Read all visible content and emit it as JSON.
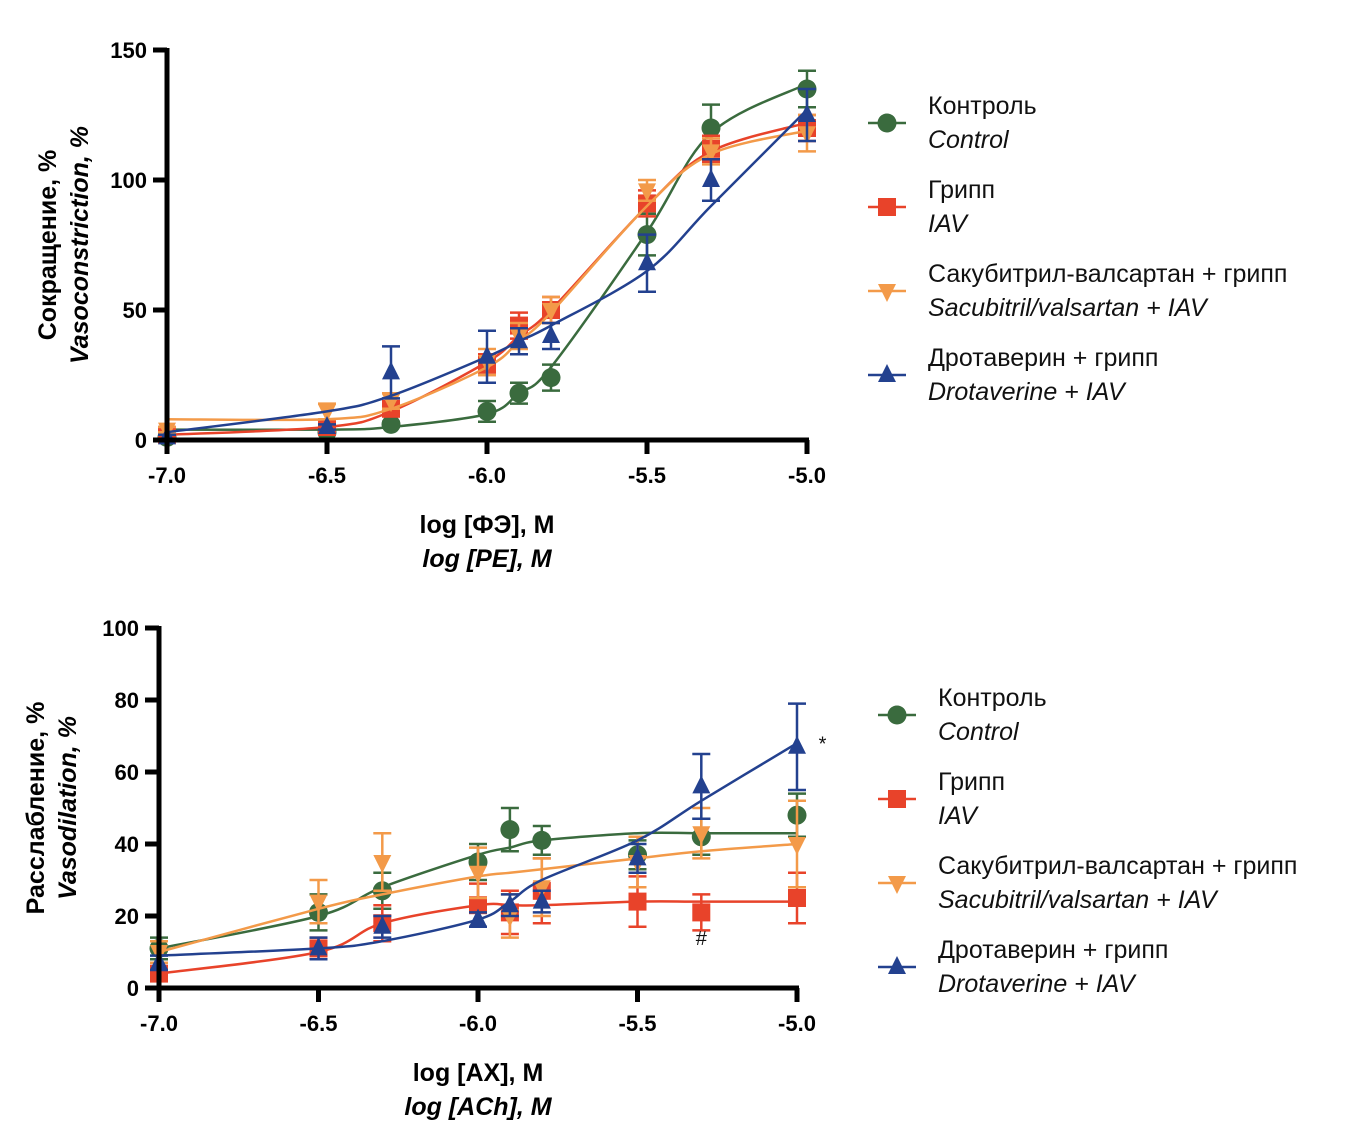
{
  "chart_data": [
    {
      "type": "line",
      "id": "top",
      "title": "",
      "xlabel": "log [ФЭ], M",
      "xlabel_en": "log [PE], M",
      "ylabel": "Сокращение, %",
      "ylabel_en": "Vasoconstriction, %",
      "xlim": [
        -7.0,
        -5.0
      ],
      "ylim": [
        0,
        150
      ],
      "xticks": [
        -7.0,
        -6.5,
        -6.0,
        -5.5,
        -5.0
      ],
      "xtick_labels": [
        "-7.0",
        "-6.5",
        "-6.0",
        "-5.5",
        "-5.0"
      ],
      "yticks": [
        0,
        50,
        100,
        150
      ],
      "ytick_labels": [
        "0",
        "50",
        "100",
        "150"
      ],
      "grid": false,
      "legend_position": "right",
      "x": [
        -7.0,
        -6.5,
        -6.3,
        -6.0,
        -5.9,
        -5.8,
        -5.5,
        -5.3,
        -5.0
      ],
      "series": [
        {
          "name": "Контроль",
          "name_en": "Control",
          "color": "#3a6b3e",
          "marker": "circle",
          "values": [
            1,
            3,
            6,
            11,
            18,
            24,
            79,
            120,
            135
          ],
          "errors": [
            1,
            1,
            1,
            4,
            4,
            5,
            8,
            9,
            7
          ],
          "fit": [
            4,
            4,
            5,
            10,
            18,
            28,
            80,
            118,
            137
          ]
        },
        {
          "name": "Грипп",
          "name_en": "IAV",
          "color": "#e8432a",
          "marker": "square",
          "values": [
            2,
            5,
            12,
            29,
            44,
            50,
            91,
            112,
            120
          ],
          "errors": [
            1,
            1,
            2,
            4,
            5,
            5,
            5,
            5,
            5
          ],
          "fit": [
            2,
            5,
            11,
            30,
            40,
            50,
            90,
            111,
            122
          ]
        },
        {
          "name": "Сакубитрил-валсартан + грипп",
          "name_en": "Sacubitril/valsartan + IAV",
          "color": "#f39a49",
          "marker": "triangle-down",
          "values": [
            4,
            11,
            15,
            30,
            40,
            50,
            96,
            111,
            118
          ],
          "errors": [
            1,
            3,
            3,
            5,
            5,
            5,
            4,
            5,
            7
          ],
          "fit": [
            8,
            8,
            12,
            28,
            38,
            49,
            90,
            110,
            119
          ]
        },
        {
          "name": "Дротаверин + грипп",
          "name_en": "Drotaverine + IAV",
          "color": "#23418f",
          "marker": "triangle-up",
          "values": [
            1,
            5,
            26,
            32,
            38,
            40,
            68,
            100,
            125
          ],
          "errors": [
            1,
            1,
            10,
            10,
            5,
            5,
            11,
            8,
            10
          ],
          "fit": [
            3,
            11,
            17,
            32,
            38,
            44,
            65,
            90,
            127
          ]
        }
      ],
      "annotations": []
    },
    {
      "type": "line",
      "id": "bottom",
      "title": "",
      "xlabel": "log [АХ], M",
      "xlabel_en": "log [ACh], M",
      "ylabel": "Расслабление, %",
      "ylabel_en": "Vasodilation, %",
      "xlim": [
        -7.0,
        -5.0
      ],
      "ylim": [
        0,
        100
      ],
      "xticks": [
        -7.0,
        -6.5,
        -6.0,
        -5.5,
        -5.0
      ],
      "xtick_labels": [
        "-7.0",
        "-6.5",
        "-6.0",
        "-5.5",
        "-5.0"
      ],
      "yticks": [
        0,
        20,
        40,
        60,
        80,
        100
      ],
      "ytick_labels": [
        "0",
        "20",
        "40",
        "60",
        "80",
        "100"
      ],
      "grid": false,
      "legend_position": "right",
      "x": [
        -7.0,
        -6.5,
        -6.3,
        -6.0,
        -5.9,
        -5.8,
        -5.5,
        -5.3,
        -5.0
      ],
      "series": [
        {
          "name": "Контроль",
          "name_en": "Control",
          "color": "#3a6b3e",
          "marker": "circle",
          "values": [
            11,
            21,
            27,
            35,
            44,
            41,
            37,
            42,
            48
          ],
          "errors": [
            3,
            5,
            5,
            5,
            6,
            4,
            4,
            5,
            6
          ],
          "fit": [
            11,
            20,
            28,
            37,
            39,
            41,
            43,
            43,
            43
          ]
        },
        {
          "name": "Грипп",
          "name_en": "IAV",
          "color": "#e8432a",
          "marker": "square",
          "values": [
            4,
            11,
            18,
            23,
            21,
            27,
            24,
            21,
            25
          ],
          "errors": [
            1,
            3,
            5,
            6,
            6,
            9,
            7,
            5,
            7
          ],
          "fit": [
            4,
            10,
            18,
            23,
            23,
            23,
            24,
            24,
            24
          ]
        },
        {
          "name": "Сакубитрил-валсартан + грипп",
          "name_en": "Sacubitril/valsartan + IAV",
          "color": "#f39a49",
          "marker": "triangle-down",
          "values": [
            10,
            24,
            35,
            32,
            20,
            28,
            35,
            43,
            40
          ],
          "errors": [
            3,
            6,
            8,
            7,
            6,
            8,
            7,
            7,
            12
          ],
          "fit": [
            10,
            22,
            26,
            31,
            32,
            33,
            36,
            38,
            40
          ]
        },
        {
          "name": "Дротаверин + грипп",
          "name_en": "Drotaverine + IAV",
          "color": "#23418f",
          "marker": "triangle-up",
          "values": [
            7,
            11,
            17,
            19,
            23,
            24,
            36,
            56,
            67
          ],
          "errors": [
            2,
            3,
            3,
            2,
            3,
            3,
            4,
            9,
            12
          ],
          "fit": [
            9,
            11,
            13,
            19,
            24,
            30,
            41,
            52,
            68
          ]
        }
      ],
      "annotations": [
        {
          "text": "*",
          "x": -4.92,
          "y": 66
        },
        {
          "text": "#",
          "x": -5.3,
          "y": 12
        }
      ]
    }
  ],
  "legend": {
    "items": [
      {
        "label": "Контроль",
        "label_en": "Control"
      },
      {
        "label": "Грипп",
        "label_en": "IAV"
      },
      {
        "label": "Сакубитрил-валсартан + грипп",
        "label_en": "Sacubitril/valsartan + IAV"
      },
      {
        "label": "Дротаверин + грипп",
        "label_en": "Drotaverine + IAV"
      }
    ]
  }
}
